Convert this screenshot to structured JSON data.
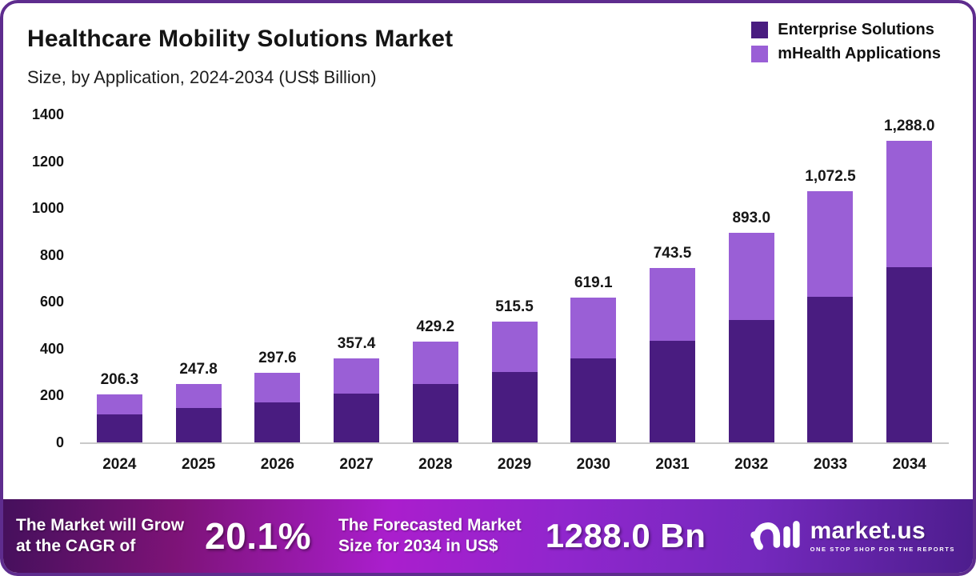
{
  "header": {
    "title": "Healthcare Mobility Solutions Market",
    "subtitle": "Size, by Application, 2024-2034 (US$ Billion)"
  },
  "legend": {
    "items": [
      {
        "label": "Enterprise Solutions",
        "color": "#491c80"
      },
      {
        "label": "mHealth Applications",
        "color": "#9a5fd6"
      }
    ]
  },
  "chart_data": {
    "type": "bar",
    "stacked": true,
    "title": "Healthcare Mobility Solutions Market",
    "subtitle": "Size, by Application, 2024-2034 (US$ Billion)",
    "xlabel": "",
    "ylabel": "",
    "categories": [
      "2024",
      "2025",
      "2026",
      "2027",
      "2028",
      "2029",
      "2030",
      "2031",
      "2032",
      "2033",
      "2034"
    ],
    "series": [
      {
        "name": "Enterprise Solutions",
        "color": "#491c80",
        "values": [
          119.0,
          145.5,
          170.0,
          207.7,
          251.0,
          300.7,
          357.5,
          432.4,
          523.3,
          622.1,
          749.1
        ]
      },
      {
        "name": "mHealth Applications",
        "color": "#9a5fd6",
        "values": [
          87.3,
          102.3,
          127.6,
          149.7,
          178.2,
          214.8,
          261.6,
          311.1,
          369.7,
          450.4,
          538.9
        ]
      }
    ],
    "totals": [
      206.3,
      247.8,
      297.6,
      357.4,
      429.2,
      515.5,
      619.1,
      743.5,
      893.0,
      1072.5,
      1288.0
    ],
    "total_labels": [
      "206.3",
      "247.8",
      "297.6",
      "357.4",
      "429.2",
      "515.5",
      "619.1",
      "743.5",
      "893.0",
      "1,072.5",
      "1,288.0"
    ],
    "ylim": [
      0,
      1400
    ],
    "yticks": [
      0,
      200,
      400,
      600,
      800,
      1000,
      1200,
      1400
    ],
    "grid": false,
    "legend_position": "top-right"
  },
  "footer": {
    "cagr_text_line1": "The Market will Grow",
    "cagr_text_line2": "at the CAGR of",
    "cagr_value": "20.1%",
    "forecast_text_line1": "The Forecasted Market",
    "forecast_text_line2": "Size for 2034 in US$",
    "forecast_value": "1288.0 Bn",
    "brand": {
      "name": "market.us",
      "tagline": "ONE STOP SHOP FOR THE REPORTS"
    }
  },
  "colors": {
    "border": "#5e2c8e",
    "axis_line": "#c9c9c9",
    "text": "#141414",
    "footer_gradient_start": "#45105c",
    "footer_gradient_mid": "#aa1ecd",
    "footer_gradient_end": "#4d1d8d"
  }
}
